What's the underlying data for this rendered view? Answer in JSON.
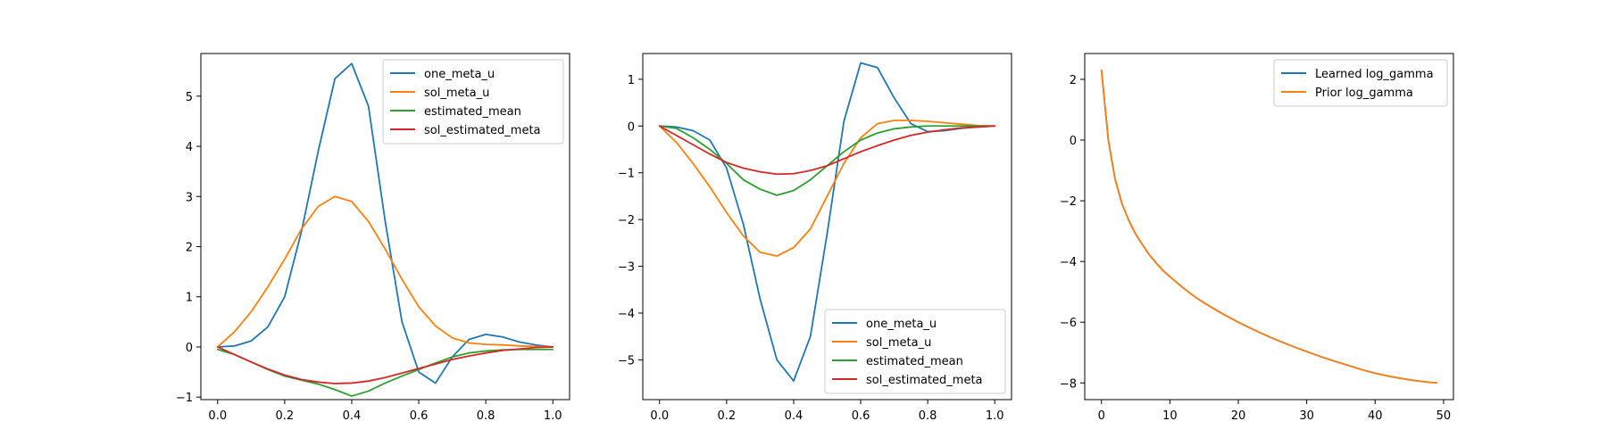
{
  "chart_data": [
    {
      "type": "line",
      "title": "",
      "xlabel": "",
      "ylabel": "",
      "xlim": [
        -0.05,
        1.05
      ],
      "ylim": [
        -1.05,
        5.85
      ],
      "xticks": [
        0.0,
        0.2,
        0.4,
        0.6,
        0.8,
        1.0
      ],
      "xtick_labels": [
        "0.0",
        "0.2",
        "0.4",
        "0.6",
        "0.8",
        "1.0"
      ],
      "yticks": [
        -1,
        0,
        1,
        2,
        3,
        4,
        5
      ],
      "ytick_labels": [
        "−1",
        "0",
        "1",
        "2",
        "3",
        "4",
        "5"
      ],
      "legend_position": "top-right",
      "x": [
        0.0,
        0.05,
        0.1,
        0.15,
        0.2,
        0.25,
        0.3,
        0.35,
        0.4,
        0.45,
        0.5,
        0.55,
        0.6,
        0.65,
        0.7,
        0.75,
        0.8,
        0.85,
        0.9,
        0.95,
        1.0
      ],
      "series": [
        {
          "name": "one_meta_u",
          "color": "#1f77b4",
          "values": [
            0.0,
            0.02,
            0.12,
            0.4,
            1.0,
            2.3,
            3.9,
            5.35,
            5.65,
            4.8,
            2.5,
            0.5,
            -0.5,
            -0.72,
            -0.2,
            0.15,
            0.25,
            0.2,
            0.1,
            0.04,
            0.0
          ]
        },
        {
          "name": "sol_meta_u",
          "color": "#ff7f0e",
          "values": [
            0.0,
            0.3,
            0.7,
            1.2,
            1.75,
            2.35,
            2.8,
            3.0,
            2.9,
            2.5,
            1.95,
            1.35,
            0.8,
            0.42,
            0.18,
            0.08,
            0.05,
            0.04,
            0.02,
            0.01,
            0.0
          ]
        },
        {
          "name": "estimated_mean",
          "color": "#2ca02c",
          "values": [
            -0.05,
            -0.15,
            -0.3,
            -0.45,
            -0.58,
            -0.66,
            -0.74,
            -0.85,
            -0.98,
            -0.88,
            -0.72,
            -0.58,
            -0.45,
            -0.32,
            -0.2,
            -0.12,
            -0.08,
            -0.06,
            -0.05,
            -0.05,
            -0.05
          ]
        },
        {
          "name": "sol_estimated_meta",
          "color": "#d62728",
          "values": [
            0.0,
            -0.15,
            -0.3,
            -0.44,
            -0.56,
            -0.65,
            -0.7,
            -0.73,
            -0.72,
            -0.68,
            -0.61,
            -0.52,
            -0.43,
            -0.34,
            -0.25,
            -0.18,
            -0.12,
            -0.07,
            -0.04,
            -0.01,
            0.0
          ]
        }
      ]
    },
    {
      "type": "line",
      "title": "",
      "xlabel": "",
      "ylabel": "",
      "xlim": [
        -0.05,
        1.05
      ],
      "ylim": [
        -5.85,
        1.55
      ],
      "xticks": [
        0.0,
        0.2,
        0.4,
        0.6,
        0.8,
        1.0
      ],
      "xtick_labels": [
        "0.0",
        "0.2",
        "0.4",
        "0.6",
        "0.8",
        "1.0"
      ],
      "yticks": [
        -5,
        -4,
        -3,
        -2,
        -1,
        0,
        1
      ],
      "ytick_labels": [
        "−5",
        "−4",
        "−3",
        "−2",
        "−1",
        "0",
        "1"
      ],
      "legend_position": "bottom-right",
      "x": [
        0.0,
        0.05,
        0.1,
        0.15,
        0.2,
        0.25,
        0.3,
        0.35,
        0.4,
        0.45,
        0.5,
        0.55,
        0.6,
        0.65,
        0.7,
        0.75,
        0.8,
        0.85,
        0.9,
        0.95,
        1.0
      ],
      "series": [
        {
          "name": "one_meta_u",
          "color": "#1f77b4",
          "values": [
            0.0,
            -0.02,
            -0.1,
            -0.3,
            -0.9,
            -2.1,
            -3.7,
            -5.0,
            -5.45,
            -4.5,
            -2.3,
            0.1,
            1.35,
            1.25,
            0.6,
            0.05,
            -0.12,
            -0.1,
            -0.05,
            -0.02,
            0.0
          ]
        },
        {
          "name": "sol_meta_u",
          "color": "#ff7f0e",
          "values": [
            0.0,
            -0.35,
            -0.8,
            -1.3,
            -1.85,
            -2.35,
            -2.7,
            -2.78,
            -2.6,
            -2.2,
            -1.5,
            -0.8,
            -0.25,
            0.05,
            0.12,
            0.12,
            0.1,
            0.07,
            0.04,
            0.01,
            0.0
          ]
        },
        {
          "name": "estimated_mean",
          "color": "#2ca02c",
          "values": [
            0.0,
            -0.05,
            -0.25,
            -0.5,
            -0.8,
            -1.15,
            -1.35,
            -1.48,
            -1.38,
            -1.15,
            -0.85,
            -0.55,
            -0.3,
            -0.15,
            -0.06,
            -0.02,
            0.0,
            0.0,
            0.0,
            0.0,
            0.0
          ]
        },
        {
          "name": "sol_estimated_meta",
          "color": "#d62728",
          "values": [
            0.0,
            -0.2,
            -0.4,
            -0.6,
            -0.78,
            -0.9,
            -0.98,
            -1.03,
            -1.02,
            -0.95,
            -0.85,
            -0.7,
            -0.55,
            -0.42,
            -0.3,
            -0.2,
            -0.13,
            -0.08,
            -0.04,
            -0.02,
            0.0
          ]
        }
      ]
    },
    {
      "type": "line",
      "title": "",
      "xlabel": "",
      "ylabel": "",
      "xlim": [
        -2.45,
        51.45
      ],
      "ylim": [
        -8.55,
        2.85
      ],
      "xticks": [
        0,
        10,
        20,
        30,
        40,
        50
      ],
      "xtick_labels": [
        "0",
        "10",
        "20",
        "30",
        "40",
        "50"
      ],
      "yticks": [
        -8,
        -6,
        -4,
        -2,
        0,
        2
      ],
      "ytick_labels": [
        "−8",
        "−6",
        "−4",
        "−2",
        "0",
        "2"
      ],
      "legend_position": "top-right",
      "x": [
        0,
        1,
        2,
        3,
        4,
        5,
        6,
        7,
        8,
        9,
        10,
        12,
        14,
        16,
        18,
        20,
        22,
        24,
        26,
        28,
        30,
        32,
        34,
        36,
        38,
        40,
        42,
        44,
        46,
        48,
        49
      ],
      "series": [
        {
          "name": "Learned log_gamma",
          "color": "#1f77b4",
          "values": [
            2.3,
            0.0,
            -1.3,
            -2.1,
            -2.65,
            -3.1,
            -3.45,
            -3.78,
            -4.05,
            -4.3,
            -4.5,
            -4.88,
            -5.22,
            -5.5,
            -5.76,
            -6.0,
            -6.22,
            -6.43,
            -6.62,
            -6.8,
            -6.97,
            -7.13,
            -7.28,
            -7.42,
            -7.56,
            -7.68,
            -7.78,
            -7.86,
            -7.93,
            -7.98,
            -8.0
          ]
        },
        {
          "name": "Prior log_gamma",
          "color": "#ff7f0e",
          "values": [
            2.3,
            0.0,
            -1.3,
            -2.1,
            -2.65,
            -3.1,
            -3.45,
            -3.78,
            -4.05,
            -4.3,
            -4.5,
            -4.88,
            -5.22,
            -5.5,
            -5.76,
            -6.0,
            -6.22,
            -6.43,
            -6.62,
            -6.8,
            -6.97,
            -7.13,
            -7.28,
            -7.42,
            -7.56,
            -7.68,
            -7.78,
            -7.86,
            -7.93,
            -7.98,
            -8.0
          ]
        }
      ]
    }
  ]
}
